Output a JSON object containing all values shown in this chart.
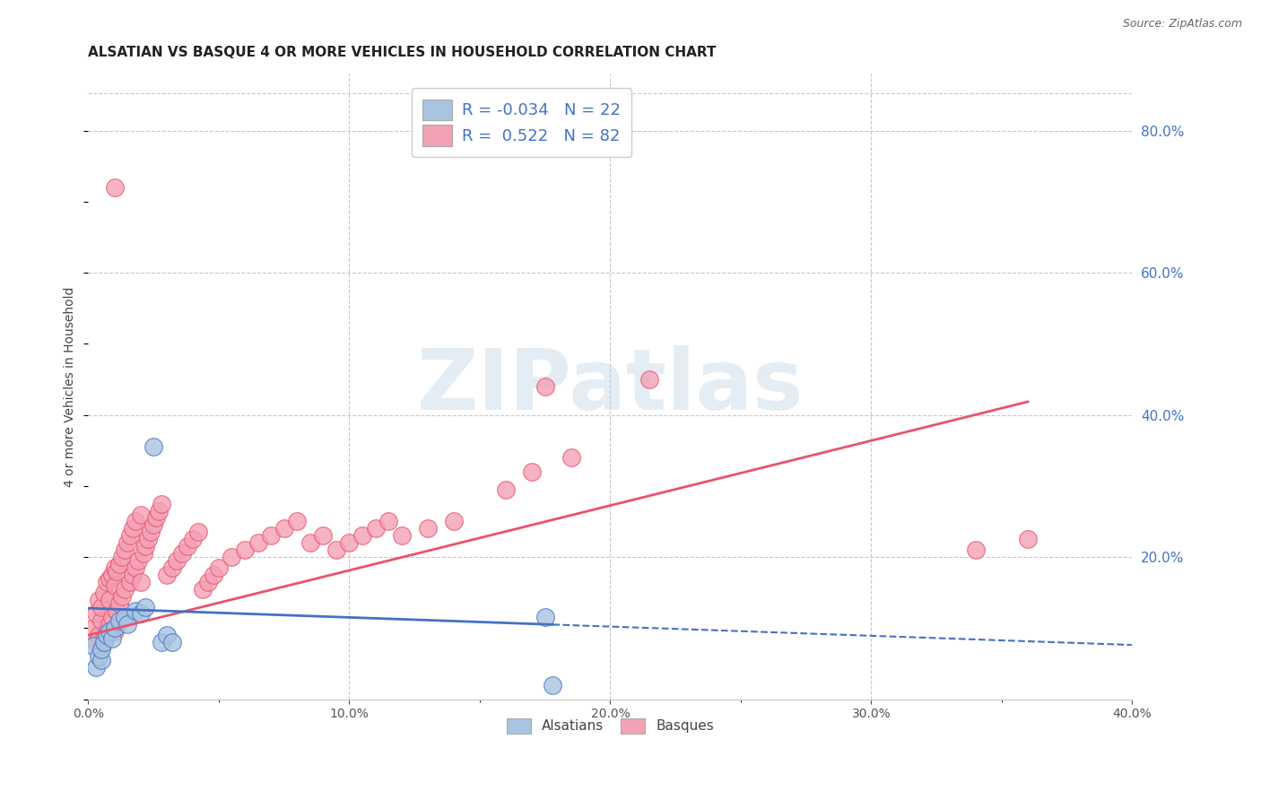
{
  "title": "ALSATIAN VS BASQUE 4 OR MORE VEHICLES IN HOUSEHOLD CORRELATION CHART",
  "source": "Source: ZipAtlas.com",
  "ylabel_left": "4 or more Vehicles in Household",
  "xlim": [
    0.0,
    0.4
  ],
  "ylim": [
    0.0,
    0.88
  ],
  "xtick_labels": [
    "0.0%",
    "",
    "10.0%",
    "",
    "20.0%",
    "",
    "30.0%",
    "",
    "40.0%"
  ],
  "xtick_vals": [
    0.0,
    0.05,
    0.1,
    0.15,
    0.2,
    0.25,
    0.3,
    0.35,
    0.4
  ],
  "ytick_right_labels": [
    "80.0%",
    "60.0%",
    "40.0%",
    "20.0%"
  ],
  "ytick_right_vals": [
    0.8,
    0.6,
    0.4,
    0.2
  ],
  "legend_labels": [
    "Alsatians",
    "Basques"
  ],
  "legend_R": [
    "-0.034",
    "0.522"
  ],
  "legend_N": [
    "22",
    "82"
  ],
  "alsatian_color": "#a8c4e0",
  "basque_color": "#f4a0b5",
  "alsatian_line_color": "#4472c4",
  "basque_line_color": "#e8536a",
  "alsatian_scatter_x": [
    0.002,
    0.003,
    0.004,
    0.005,
    0.005,
    0.006,
    0.007,
    0.008,
    0.009,
    0.01,
    0.012,
    0.014,
    0.015,
    0.018,
    0.02,
    0.022,
    0.025,
    0.028,
    0.03,
    0.032,
    0.175,
    0.178
  ],
  "alsatian_scatter_y": [
    0.075,
    0.045,
    0.06,
    0.055,
    0.07,
    0.08,
    0.09,
    0.095,
    0.085,
    0.1,
    0.11,
    0.115,
    0.105,
    0.125,
    0.12,
    0.13,
    0.355,
    0.08,
    0.09,
    0.08,
    0.115,
    0.02
  ],
  "basque_scatter_x": [
    0.002,
    0.003,
    0.003,
    0.004,
    0.004,
    0.005,
    0.005,
    0.005,
    0.006,
    0.006,
    0.007,
    0.007,
    0.008,
    0.008,
    0.008,
    0.009,
    0.009,
    0.01,
    0.01,
    0.01,
    0.011,
    0.011,
    0.012,
    0.012,
    0.013,
    0.013,
    0.014,
    0.014,
    0.015,
    0.015,
    0.016,
    0.016,
    0.017,
    0.017,
    0.018,
    0.018,
    0.019,
    0.02,
    0.02,
    0.021,
    0.022,
    0.023,
    0.024,
    0.025,
    0.026,
    0.027,
    0.028,
    0.03,
    0.032,
    0.034,
    0.036,
    0.038,
    0.04,
    0.042,
    0.044,
    0.046,
    0.048,
    0.05,
    0.055,
    0.06,
    0.065,
    0.07,
    0.075,
    0.08,
    0.085,
    0.09,
    0.095,
    0.1,
    0.105,
    0.11,
    0.115,
    0.12,
    0.13,
    0.14,
    0.16,
    0.17,
    0.185,
    0.175,
    0.34,
    0.36,
    0.215,
    0.01
  ],
  "basque_scatter_y": [
    0.1,
    0.08,
    0.12,
    0.09,
    0.14,
    0.075,
    0.11,
    0.13,
    0.085,
    0.15,
    0.095,
    0.165,
    0.105,
    0.17,
    0.14,
    0.115,
    0.175,
    0.095,
    0.16,
    0.185,
    0.125,
    0.18,
    0.135,
    0.19,
    0.145,
    0.2,
    0.155,
    0.21,
    0.115,
    0.22,
    0.165,
    0.23,
    0.175,
    0.24,
    0.185,
    0.25,
    0.195,
    0.165,
    0.26,
    0.205,
    0.215,
    0.225,
    0.235,
    0.245,
    0.255,
    0.265,
    0.275,
    0.175,
    0.185,
    0.195,
    0.205,
    0.215,
    0.225,
    0.235,
    0.155,
    0.165,
    0.175,
    0.185,
    0.2,
    0.21,
    0.22,
    0.23,
    0.24,
    0.25,
    0.22,
    0.23,
    0.21,
    0.22,
    0.23,
    0.24,
    0.25,
    0.23,
    0.24,
    0.25,
    0.295,
    0.32,
    0.34,
    0.44,
    0.21,
    0.225,
    0.45,
    0.72
  ],
  "watermark_text": "ZIPatlas",
  "background_color": "#ffffff",
  "grid_color": "#c8c8c8",
  "title_fontsize": 11,
  "axis_label_fontsize": 10,
  "tick_fontsize": 10,
  "source_fontsize": 9
}
